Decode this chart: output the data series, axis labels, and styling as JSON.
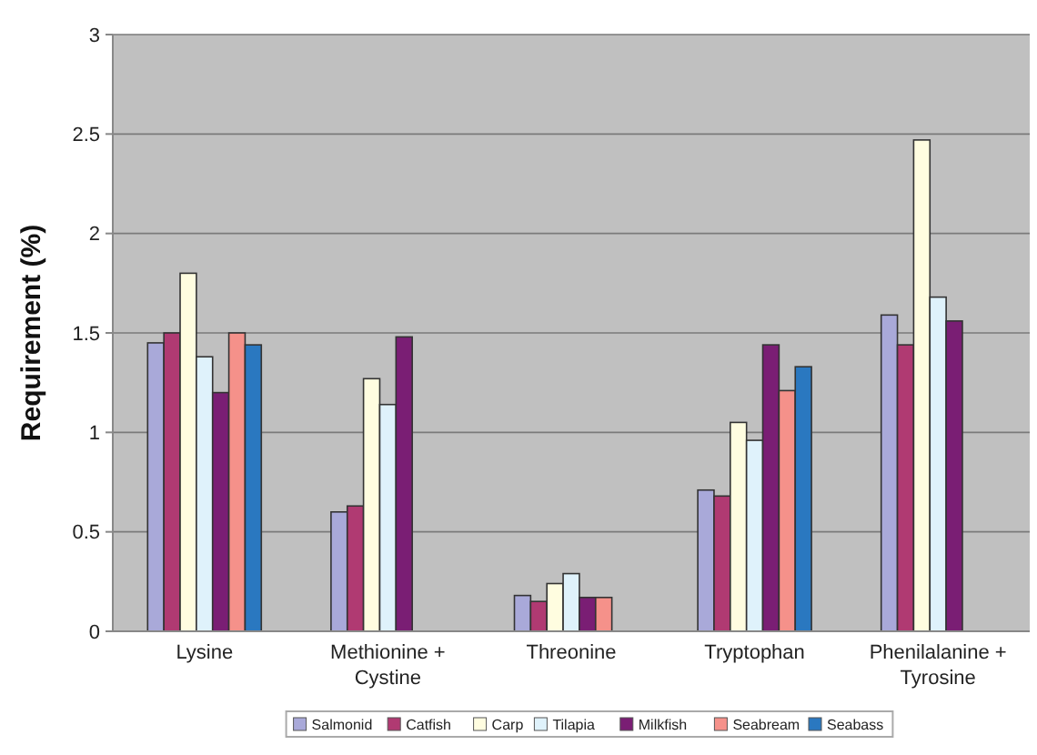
{
  "chart_data": {
    "type": "bar",
    "ylabel": "Requirement (%)",
    "categories": [
      "Lysine",
      "Methionine + Cystine",
      "Threonine",
      "Tryptophan",
      "Phenilalanine + Tyrosine"
    ],
    "series": [
      {
        "name": "Salmonid",
        "color": "#a9a9d9",
        "values": [
          1.45,
          0.6,
          0.18,
          0.71,
          1.59
        ]
      },
      {
        "name": "Catfish",
        "color": "#b03a72",
        "values": [
          1.5,
          0.63,
          0.15,
          0.68,
          1.44
        ]
      },
      {
        "name": "Carp",
        "color": "#fffde0",
        "values": [
          1.8,
          1.27,
          0.24,
          1.05,
          2.47
        ]
      },
      {
        "name": "Tilapia",
        "color": "#dff2fb",
        "values": [
          1.38,
          1.14,
          0.29,
          0.96,
          1.68
        ]
      },
      {
        "name": "Milkfish",
        "color": "#7a1e74",
        "values": [
          1.2,
          1.48,
          0.17,
          1.44,
          1.56
        ]
      },
      {
        "name": "Seabream",
        "color": "#f5918a",
        "values": [
          1.5,
          null,
          0.17,
          1.21,
          null
        ]
      },
      {
        "name": "Seabass",
        "color": "#2a78c0",
        "values": [
          1.44,
          null,
          null,
          1.33,
          null
        ]
      }
    ],
    "ylim": [
      0,
      3
    ],
    "yticks": [
      0,
      0.5,
      1,
      1.5,
      2,
      2.5,
      3
    ],
    "grid": "y",
    "legend": "bottom"
  }
}
